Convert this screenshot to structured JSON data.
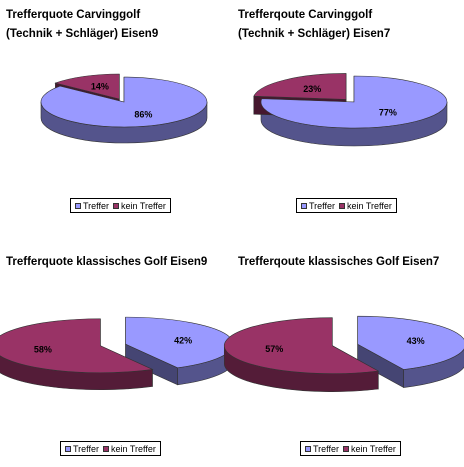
{
  "colors": {
    "treffer": "#9999ff",
    "kein_treffer": "#993366"
  },
  "chart_data": [
    {
      "type": "pie",
      "title": "Trefferquote Carvinggolf\n(Technik + Schläger) Eisen9",
      "categories": [
        "Treffer",
        "kein Treffer"
      ],
      "values": [
        86,
        14
      ],
      "labels": [
        "86%",
        "14%"
      ],
      "legend": {
        "position": "bottom",
        "entries": [
          "Treffer",
          "kein Treffer"
        ]
      }
    },
    {
      "type": "pie",
      "title": "Trefferqoute Carvinggolf\n(Technik + Schläger) Eisen7",
      "categories": [
        "Treffer",
        "kein Treffer"
      ],
      "values": [
        77,
        23
      ],
      "labels": [
        "77%",
        "23%"
      ],
      "legend": {
        "position": "bottom",
        "entries": [
          "Treffer",
          "kein Treffer"
        ]
      }
    },
    {
      "type": "pie",
      "title": "Trefferquote klassisches Golf Eisen9",
      "categories": [
        "Treffer",
        "kein Treffer"
      ],
      "values": [
        42,
        58
      ],
      "labels": [
        "42%",
        "58%"
      ],
      "legend": {
        "position": "bottom",
        "entries": [
          "Treffer",
          "kein Treffer"
        ]
      }
    },
    {
      "type": "pie",
      "title": "Trefferqoute klassisches Golf Eisen7",
      "categories": [
        "Treffer",
        "kein Treffer"
      ],
      "values": [
        43,
        57
      ],
      "labels": [
        "43%",
        "57%"
      ],
      "legend": {
        "position": "bottom",
        "entries": [
          "Treffer",
          "kein Treffer"
        ]
      }
    }
  ]
}
